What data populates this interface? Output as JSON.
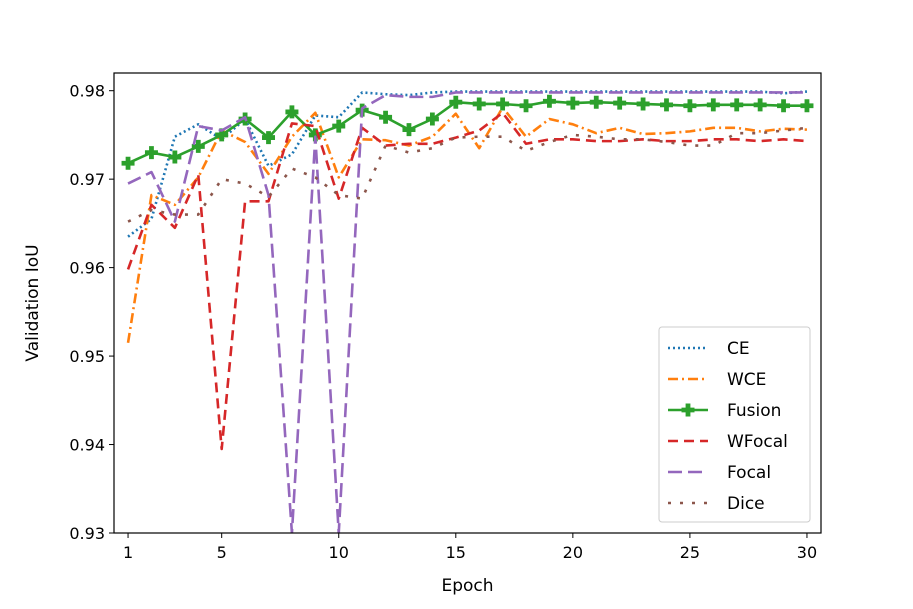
{
  "chart_data": {
    "type": "line",
    "xlabel": "Epoch",
    "ylabel": "Validation IoU",
    "xlim": [
      0.4,
      30.6
    ],
    "ylim": [
      0.93,
      0.982
    ],
    "xticks": [
      1,
      5,
      10,
      15,
      20,
      25,
      30
    ],
    "yticks": [
      0.93,
      0.94,
      0.95,
      0.96,
      0.97,
      0.98
    ],
    "ytick_labels": [
      "0.93",
      "0.94",
      "0.95",
      "0.96",
      "0.97",
      "0.98"
    ],
    "legend_position": "lower-right",
    "x": [
      1,
      2,
      3,
      4,
      5,
      6,
      7,
      8,
      9,
      10,
      11,
      12,
      13,
      14,
      15,
      16,
      17,
      18,
      19,
      20,
      21,
      22,
      23,
      24,
      25,
      26,
      27,
      28,
      29,
      30
    ],
    "series": [
      {
        "name": "CE",
        "color": "#1f77b4",
        "dash": "dotted",
        "marker": "none",
        "values": [
          0.9635,
          0.9655,
          0.9748,
          0.9762,
          0.9745,
          0.9768,
          0.9715,
          0.9728,
          0.9772,
          0.977,
          0.9798,
          0.9796,
          0.9795,
          0.9798,
          0.9799,
          0.9799,
          0.9799,
          0.9799,
          0.9799,
          0.9799,
          0.9799,
          0.9799,
          0.9799,
          0.9799,
          0.9799,
          0.9799,
          0.9799,
          0.9799,
          0.9797,
          0.9799
        ]
      },
      {
        "name": "WCE",
        "color": "#ff7f0e",
        "dash": "dashdot",
        "marker": "none",
        "values": [
          0.9515,
          0.9682,
          0.9671,
          0.9702,
          0.9755,
          0.9742,
          0.9706,
          0.9748,
          0.9775,
          0.9702,
          0.9745,
          0.9744,
          0.9738,
          0.9748,
          0.9774,
          0.9735,
          0.9781,
          0.9748,
          0.9768,
          0.9762,
          0.9752,
          0.9758,
          0.9751,
          0.9752,
          0.9754,
          0.9758,
          0.9758,
          0.9754,
          0.9757,
          0.9756
        ]
      },
      {
        "name": "Fusion",
        "color": "#2ca02c",
        "dash": "solid",
        "marker": "plus",
        "values": [
          0.9718,
          0.973,
          0.9725,
          0.9737,
          0.975,
          0.9768,
          0.9747,
          0.9776,
          0.975,
          0.976,
          0.9778,
          0.977,
          0.9756,
          0.9768,
          0.9787,
          0.9785,
          0.9785,
          0.9783,
          0.9788,
          0.9786,
          0.9787,
          0.9786,
          0.9785,
          0.9784,
          0.9783,
          0.9784,
          0.9784,
          0.9784,
          0.9783,
          0.9783
        ]
      },
      {
        "name": "WFocal",
        "color": "#d62728",
        "dash": "dashed",
        "marker": "none",
        "values": [
          0.9598,
          0.9671,
          0.9645,
          0.9705,
          0.9395,
          0.9675,
          0.9675,
          0.9763,
          0.976,
          0.9678,
          0.9758,
          0.9738,
          0.974,
          0.974,
          0.9747,
          0.9755,
          0.9775,
          0.974,
          0.9745,
          0.9745,
          0.9743,
          0.9743,
          0.9745,
          0.9743,
          0.9743,
          0.9745,
          0.9745,
          0.9743,
          0.9745,
          0.9743
        ]
      },
      {
        "name": "Focal",
        "color": "#9467bd",
        "dash": "longdash",
        "marker": "none",
        "values": [
          0.9695,
          0.9708,
          0.9652,
          0.976,
          0.9755,
          0.977,
          0.9682,
          0.93,
          0.9748,
          0.93,
          0.978,
          0.9795,
          0.9793,
          0.9793,
          0.9798,
          0.9798,
          0.9798,
          0.9798,
          0.9798,
          0.9798,
          0.9798,
          0.9798,
          0.9798,
          0.9798,
          0.9798,
          0.9798,
          0.9798,
          0.9798,
          0.9798,
          0.9798
        ]
      },
      {
        "name": "Dice",
        "color": "#8c564b",
        "dash": "sparse",
        "marker": "none",
        "values": [
          0.9652,
          0.9665,
          0.966,
          0.966,
          0.97,
          0.9695,
          0.968,
          0.9712,
          0.9702,
          0.9682,
          0.9678,
          0.9738,
          0.973,
          0.9735,
          0.9747,
          0.9748,
          0.9748,
          0.9732,
          0.9742,
          0.975,
          0.9748,
          0.9745,
          0.9745,
          0.9742,
          0.9738,
          0.9738,
          0.9752,
          0.9752,
          0.9755,
          0.9758
        ]
      }
    ]
  }
}
